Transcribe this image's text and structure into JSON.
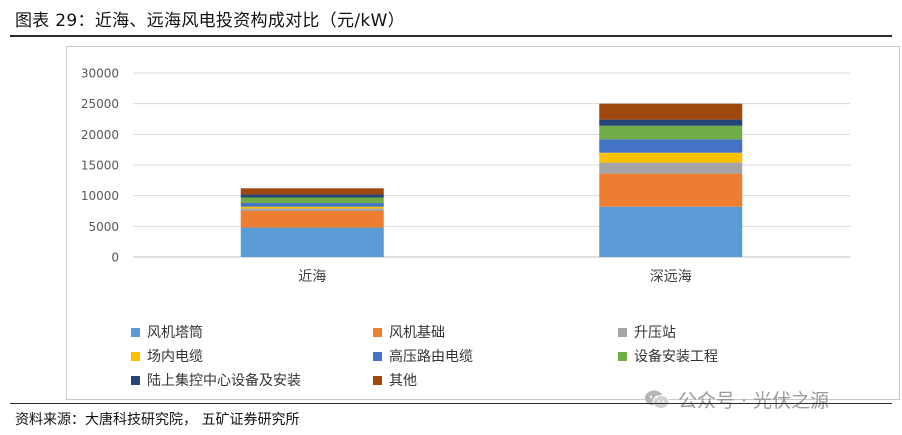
{
  "header": {
    "title": "图表 29：近海、远海风电投资构成对比（元/kW）"
  },
  "footer": {
    "source": "资料来源：大唐科技研究院，  五矿证券研究所",
    "watermark": "公众号 · 光伏之源"
  },
  "chart_data": {
    "type": "bar",
    "stacked": true,
    "categories": [
      "近海",
      "深远海"
    ],
    "ylim": [
      0,
      30000
    ],
    "yticks": [
      0,
      5000,
      10000,
      15000,
      20000,
      25000,
      30000
    ],
    "grid": true,
    "legend_position": "bottom",
    "series": [
      {
        "name": "风机塔筒",
        "color": "#5b9bd5",
        "values": [
          4800,
          8200
        ]
      },
      {
        "name": "风机基础",
        "color": "#ed7d31",
        "values": [
          2700,
          5400
        ]
      },
      {
        "name": "升压站",
        "color": "#a5a5a5",
        "values": [
          400,
          1800
        ]
      },
      {
        "name": "场内电缆",
        "color": "#ffc000",
        "values": [
          300,
          1600
        ]
      },
      {
        "name": "高压路由电缆",
        "color": "#4472c4",
        "values": [
          600,
          2200
        ]
      },
      {
        "name": "设备安装工程",
        "color": "#70ad47",
        "values": [
          900,
          2200
        ]
      },
      {
        "name": "陆上集控中心设备及安装",
        "color": "#264478",
        "values": [
          500,
          1000
        ]
      },
      {
        "name": "其他",
        "color": "#9e480e",
        "values": [
          1000,
          2600
        ]
      }
    ]
  }
}
